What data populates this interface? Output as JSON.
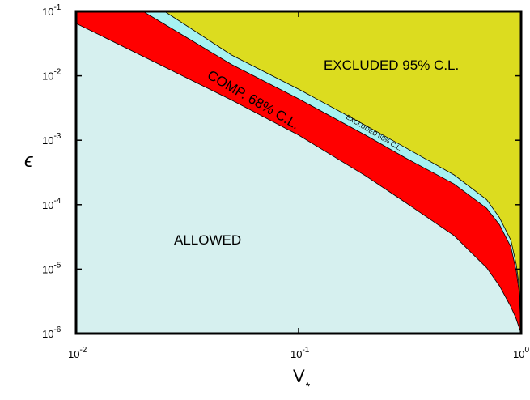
{
  "chart_data": {
    "type": "area",
    "xlabel": "V",
    "xlabel_subscript": "*",
    "ylabel": "ϵ",
    "x_scale": "log",
    "y_scale": "log",
    "xlim": [
      0.01,
      1
    ],
    "ylim": [
      1e-06,
      0.1
    ],
    "grid": false,
    "x_ticks": [
      {
        "value": 0.01,
        "base": "10",
        "exp": "-2"
      },
      {
        "value": 0.1,
        "base": "10",
        "exp": "-1"
      },
      {
        "value": 1,
        "base": "10",
        "exp": "0"
      }
    ],
    "y_ticks": [
      {
        "value": 0.1,
        "base": "10",
        "exp": "-1"
      },
      {
        "value": 0.01,
        "base": "10",
        "exp": "-2"
      },
      {
        "value": 0.001,
        "base": "10",
        "exp": "-3"
      },
      {
        "value": 0.0001,
        "base": "10",
        "exp": "-4"
      },
      {
        "value": 1e-05,
        "base": "10",
        "exp": "-5"
      },
      {
        "value": 1e-06,
        "base": "10",
        "exp": "-6"
      }
    ],
    "boundaries": {
      "lower_comp": {
        "x": [
          0.01,
          0.02,
          0.05,
          0.1,
          0.2,
          0.3,
          0.5,
          0.7,
          0.8,
          0.9,
          0.95,
          1.0
        ],
        "y": [
          0.065,
          0.02,
          0.0042,
          0.0012,
          0.00028,
          0.00011,
          3.3e-05,
          1.05e-05,
          5.5e-06,
          2.6e-06,
          1.7e-06,
          1e-06
        ]
      },
      "upper_comp": {
        "x": [
          0.012,
          0.02,
          0.05,
          0.1,
          0.2,
          0.3,
          0.5,
          0.7,
          0.8,
          0.9,
          0.95,
          0.98,
          1.0
        ],
        "y": [
          0.1,
          0.1,
          0.015,
          0.0044,
          0.0012,
          0.00054,
          0.00021,
          8.8e-05,
          4.9e-05,
          2.2e-05,
          9.5e-06,
          4.5e-06,
          1e-06
        ]
      },
      "upper_excluded_68": {
        "x": [
          0.025,
          0.05,
          0.1,
          0.2,
          0.3,
          0.5,
          0.7,
          0.8,
          0.9,
          0.95,
          0.98,
          1.0
        ],
        "y": [
          0.1,
          0.021,
          0.0062,
          0.0017,
          0.00078,
          0.00029,
          0.00012,
          6.3e-05,
          2.8e-05,
          1.2e-05,
          5.5e-06,
          1e-06
        ]
      }
    },
    "regions": [
      {
        "label": "ALLOWED",
        "color": "#d6f0ef"
      },
      {
        "label": "COMP. 68% C.L.",
        "color": "#ff0000"
      },
      {
        "label": "EXCLUDED 68% C.L.",
        "color": "#a6f2f2"
      },
      {
        "label": "EXCLUDED 95% C.L.",
        "color": "#dcdc1f"
      }
    ]
  }
}
